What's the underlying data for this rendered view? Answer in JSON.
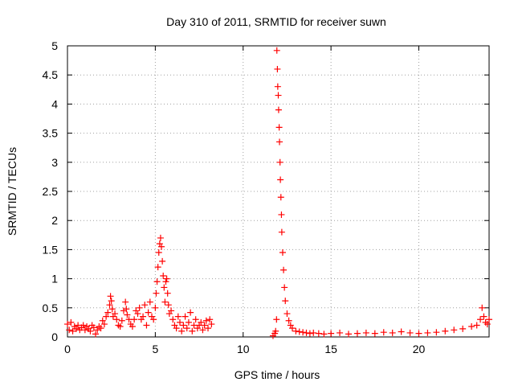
{
  "chart_data": {
    "type": "scatter",
    "title": "Day 310 of 2011, SRMTID for receiver suwn",
    "xlabel": "GPS time / hours",
    "ylabel": "SRMTID / TECUs",
    "xlim": [
      0,
      24
    ],
    "ylim": [
      0,
      5
    ],
    "xticks": [
      0,
      5,
      10,
      15,
      20
    ],
    "xtick_labels": [
      "0",
      "5",
      "10",
      "15",
      "20"
    ],
    "yticks": [
      0,
      0.5,
      1,
      1.5,
      2,
      2.5,
      3,
      3.5,
      4,
      4.5,
      5
    ],
    "ytick_labels": [
      "0",
      "0.5",
      "1",
      "1.5",
      "2",
      "2.5",
      "3",
      "3.5",
      "4",
      "4.5",
      "5"
    ],
    "grid": true,
    "marker": "+",
    "series": [
      {
        "name": "SRMTID",
        "color": "#ff0000",
        "x": [
          0.0,
          0.1,
          0.2,
          0.3,
          0.4,
          0.5,
          0.6,
          0.7,
          0.8,
          0.9,
          1.0,
          1.1,
          1.2,
          1.3,
          1.4,
          1.5,
          1.6,
          1.7,
          1.8,
          1.9,
          2.0,
          2.1,
          2.2,
          2.3,
          2.4,
          2.45,
          2.5,
          2.55,
          2.6,
          2.7,
          2.8,
          2.9,
          3.0,
          3.1,
          3.2,
          3.3,
          3.35,
          3.4,
          3.5,
          3.6,
          3.7,
          3.8,
          3.9,
          4.0,
          4.1,
          4.2,
          4.3,
          4.4,
          4.5,
          4.6,
          4.7,
          4.8,
          4.9,
          5.0,
          5.05,
          5.1,
          5.15,
          5.2,
          5.25,
          5.3,
          5.35,
          5.4,
          5.45,
          5.5,
          5.55,
          5.6,
          5.65,
          5.7,
          5.75,
          5.8,
          5.9,
          6.0,
          6.1,
          6.2,
          6.3,
          6.4,
          6.5,
          6.6,
          6.7,
          6.8,
          6.9,
          7.0,
          7.1,
          7.2,
          7.3,
          7.4,
          7.5,
          7.6,
          7.7,
          7.8,
          7.9,
          8.0,
          8.1,
          8.2,
          11.7,
          11.8,
          11.85,
          11.9,
          11.92,
          11.95,
          11.97,
          12.0,
          12.02,
          12.05,
          12.07,
          12.1,
          12.12,
          12.15,
          12.18,
          12.2,
          12.25,
          12.3,
          12.35,
          12.4,
          12.5,
          12.6,
          12.7,
          12.8,
          13.0,
          13.2,
          13.4,
          13.6,
          13.8,
          14.0,
          14.3,
          14.6,
          15.0,
          15.5,
          16.0,
          16.5,
          17.0,
          17.5,
          18.0,
          18.5,
          19.0,
          19.5,
          20.0,
          20.5,
          21.0,
          21.5,
          22.0,
          22.5,
          23.0,
          23.3,
          23.5,
          23.6,
          23.7,
          23.8,
          23.9,
          24.0
        ],
        "y": [
          0.22,
          0.12,
          0.25,
          0.1,
          0.18,
          0.14,
          0.2,
          0.12,
          0.16,
          0.2,
          0.12,
          0.18,
          0.14,
          0.1,
          0.2,
          0.16,
          0.05,
          0.12,
          0.18,
          0.15,
          0.28,
          0.22,
          0.35,
          0.42,
          0.55,
          0.7,
          0.62,
          0.48,
          0.35,
          0.4,
          0.3,
          0.2,
          0.18,
          0.28,
          0.45,
          0.6,
          0.48,
          0.38,
          0.3,
          0.22,
          0.18,
          0.3,
          0.45,
          0.4,
          0.5,
          0.3,
          0.35,
          0.55,
          0.2,
          0.42,
          0.6,
          0.35,
          0.3,
          0.5,
          0.75,
          0.95,
          1.2,
          1.45,
          1.6,
          1.7,
          1.55,
          1.3,
          1.05,
          0.85,
          0.6,
          0.95,
          1.0,
          0.75,
          0.55,
          0.4,
          0.45,
          0.3,
          0.2,
          0.15,
          0.35,
          0.25,
          0.1,
          0.2,
          0.35,
          0.15,
          0.25,
          0.42,
          0.1,
          0.2,
          0.3,
          0.15,
          0.2,
          0.25,
          0.12,
          0.2,
          0.28,
          0.15,
          0.3,
          0.22,
          0.02,
          0.06,
          0.1,
          0.3,
          4.92,
          4.6,
          4.3,
          4.15,
          3.9,
          3.6,
          3.35,
          3.0,
          2.7,
          2.4,
          2.1,
          1.8,
          1.45,
          1.15,
          0.85,
          0.62,
          0.4,
          0.28,
          0.2,
          0.15,
          0.1,
          0.09,
          0.08,
          0.07,
          0.06,
          0.07,
          0.06,
          0.05,
          0.06,
          0.07,
          0.05,
          0.06,
          0.07,
          0.06,
          0.08,
          0.07,
          0.09,
          0.07,
          0.06,
          0.07,
          0.08,
          0.1,
          0.12,
          0.14,
          0.18,
          0.2,
          0.3,
          0.5,
          0.35,
          0.25,
          0.22,
          0.3
        ]
      }
    ]
  }
}
